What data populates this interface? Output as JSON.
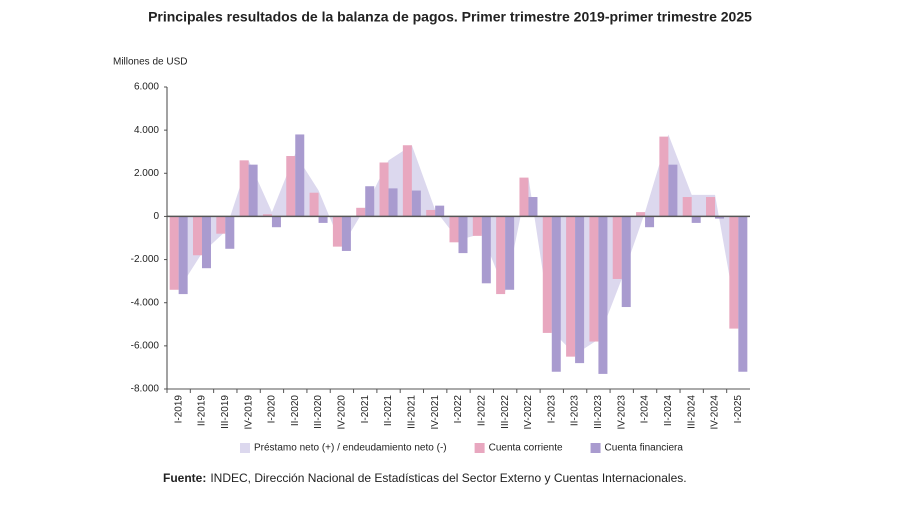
{
  "chart_data": {
    "type": "bar",
    "title": "Principales resultados de la balanza de pagos. Primer trimestre 2019-primer trimestre 2025",
    "y_label": "Millones de USD",
    "categories": [
      "I-2019",
      "II-2019",
      "III-2019",
      "IV-2019",
      "I-2020",
      "II-2020",
      "III-2020",
      "IV-2020",
      "I-2021",
      "II-2021",
      "III-2021",
      "IV-2021",
      "I-2022",
      "II-2022",
      "III-2022",
      "IV-2022",
      "I-2023",
      "II-2023",
      "III-2023",
      "IV-2023",
      "I-2024",
      "II-2024",
      "III-2024",
      "IV-2024",
      "I-2025"
    ],
    "series": [
      {
        "name": "Préstamo neto (+) / endeudamiento neto (-)",
        "type": "area",
        "color": "#dcd8ee",
        "values": [
          -3400,
          -1700,
          -700,
          2600,
          200,
          2900,
          1200,
          -1400,
          400,
          2600,
          3300,
          300,
          -1100,
          -800,
          -3500,
          1800,
          -5300,
          -6400,
          -5700,
          -2900,
          200,
          3800,
          1000,
          1000,
          -5100
        ]
      },
      {
        "name": "Cuenta corriente",
        "type": "bar",
        "color": "#e8a7bf",
        "values": [
          -3400,
          -1800,
          -800,
          2600,
          100,
          2800,
          1100,
          -1400,
          400,
          2500,
          3300,
          300,
          -1200,
          -900,
          -3600,
          1800,
          -5400,
          -6500,
          -5800,
          -2900,
          200,
          3700,
          900,
          900,
          -5200
        ]
      },
      {
        "name": "Cuenta financiera",
        "type": "bar",
        "color": "#a99bcf",
        "values": [
          -3600,
          -2400,
          -1500,
          2400,
          -500,
          3800,
          -300,
          -1600,
          1400,
          1300,
          1200,
          500,
          -1700,
          -3100,
          -3400,
          900,
          -7200,
          -6800,
          -7300,
          -4200,
          -500,
          2400,
          -300,
          -100,
          -7200
        ]
      }
    ],
    "ylim": [
      -8000,
      6000
    ],
    "yticks": [
      {
        "value": -8000,
        "label": "-8.000"
      },
      {
        "value": -6000,
        "label": "-6.000"
      },
      {
        "value": -4000,
        "label": "-4.000"
      },
      {
        "value": -2000,
        "label": "-2.000"
      },
      0,
      {
        "value": 2000,
        "label": "2.000"
      },
      {
        "value": 4000,
        "label": "4.000"
      },
      {
        "value": 6000,
        "label": "6.000"
      }
    ],
    "grid": false,
    "legend": "bottom",
    "source_label": "Fuente:",
    "source": "INDEC, Dirección Nacional de Estadísticas del Sector Externo y Cuentas Internacionales."
  }
}
